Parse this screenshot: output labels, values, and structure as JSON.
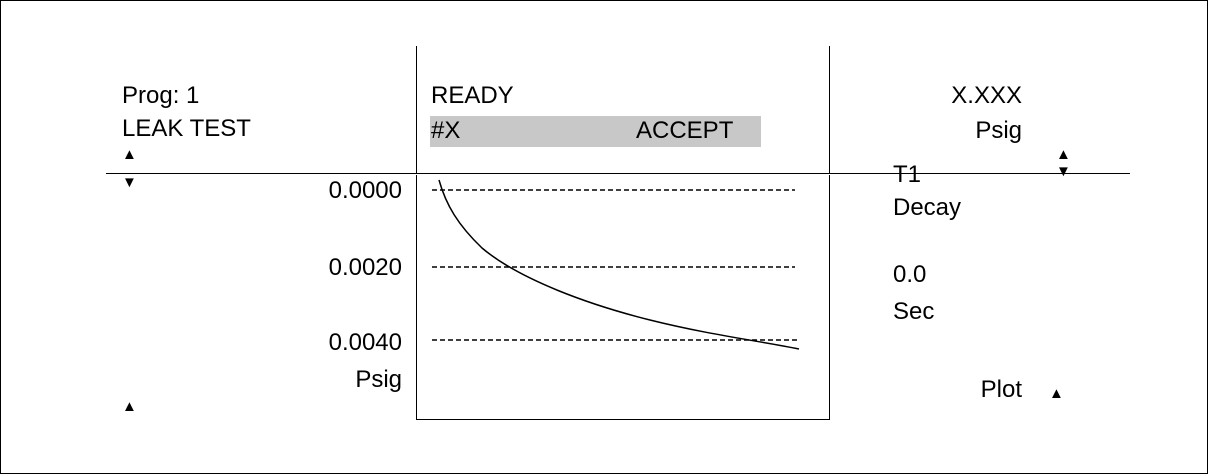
{
  "header": {
    "program_label": "Prog: 1",
    "test_name": "LEAK TEST",
    "status": "READY",
    "part_number": "#X",
    "result": "ACCEPT",
    "pressure_value": "X.XXX",
    "pressure_unit": "Psig"
  },
  "left_panel": {
    "scale": [
      "0.0000",
      "0.0020",
      "0.0040"
    ],
    "unit": "Psig"
  },
  "right_panel": {
    "step_name": "T1",
    "step_type": "Decay",
    "time_value": "0.0",
    "time_unit": "Sec",
    "plot_button": "Plot"
  },
  "arrows": {
    "up": "▲",
    "down": "▼"
  }
}
